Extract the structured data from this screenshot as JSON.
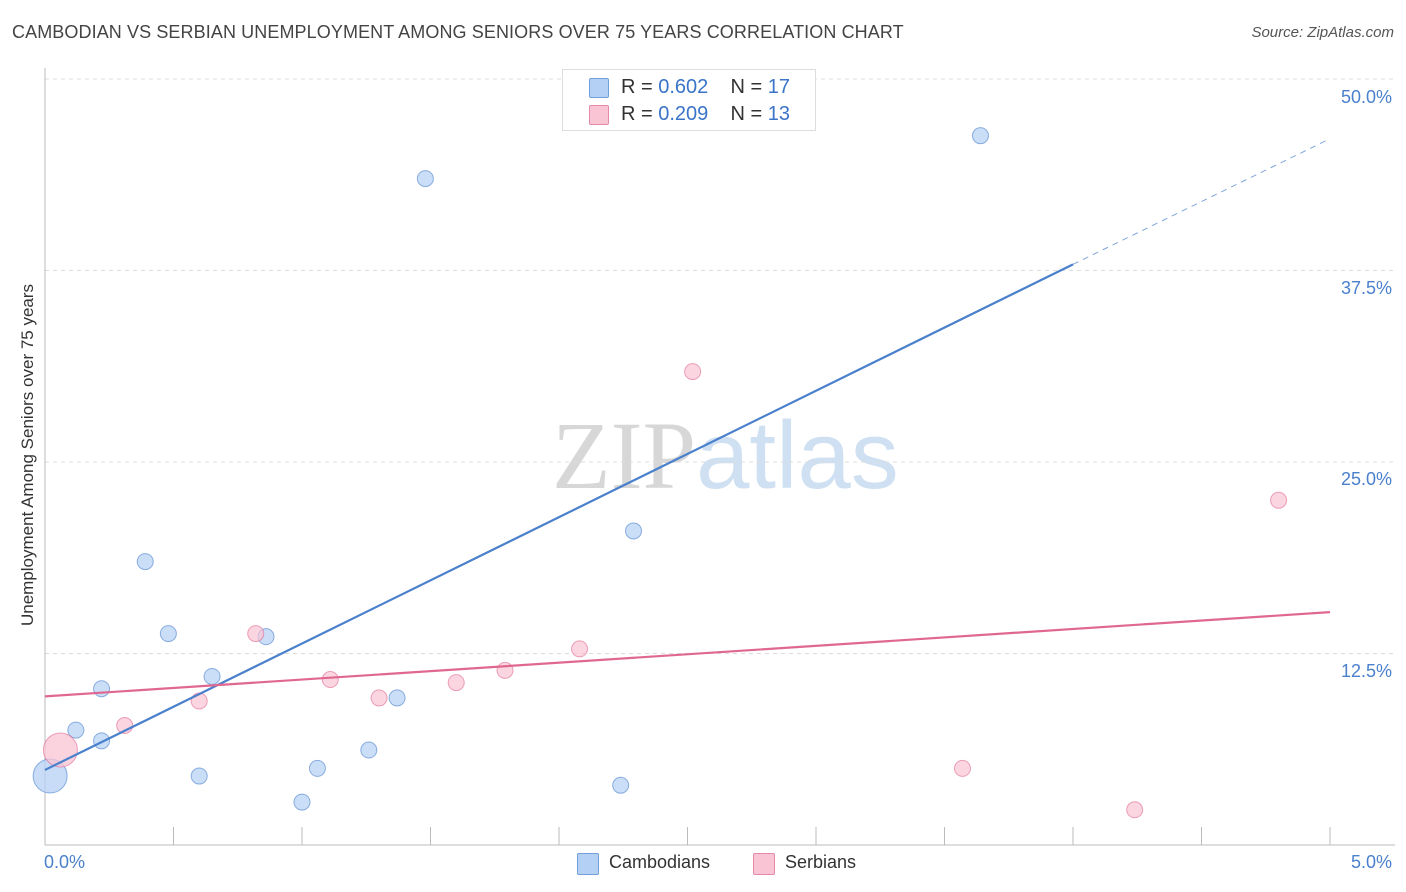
{
  "title": "CAMBODIAN VS SERBIAN UNEMPLOYMENT AMONG SENIORS OVER 75 YEARS CORRELATION CHART",
  "source": "Source: ZipAtlas.com",
  "watermark": {
    "zip": "ZIP",
    "atlas": "atlas"
  },
  "legend": {
    "rows": [
      {
        "r_label": "R = ",
        "r_value": "0.602",
        "n_label": "N = ",
        "n_value": "17",
        "color": "#b5d0f5"
      },
      {
        "r_label": "R = ",
        "r_value": "0.209",
        "n_label": "N = ",
        "n_value": "13",
        "color": "#f9c4d4"
      }
    ]
  },
  "bottom_legend": [
    {
      "label": "Cambodians",
      "color": "#b5d0f5"
    },
    {
      "label": "Serbians",
      "color": "#f9c4d4"
    }
  ],
  "chart_data": {
    "type": "scatter",
    "ylabel": "Unemployment Among Seniors over 75 years",
    "xlim": [
      0,
      5.0
    ],
    "ylim": [
      0,
      50.0
    ],
    "x_tick_labels": [
      "0.0%",
      "5.0%"
    ],
    "y_ticks": [
      12.5,
      25.0,
      37.5,
      50.0
    ],
    "y_tick_labels": [
      "12.5%",
      "25.0%",
      "37.5%",
      "50.0%"
    ],
    "grid": true,
    "series": [
      {
        "name": "Cambodians",
        "color": "#4a80cc",
        "fill": "#b5d0f5",
        "points": [
          {
            "x": 0.02,
            "y": 4.5,
            "big": true
          },
          {
            "x": 0.12,
            "y": 7.5
          },
          {
            "x": 0.22,
            "y": 6.8
          },
          {
            "x": 0.22,
            "y": 10.2
          },
          {
            "x": 0.39,
            "y": 18.5
          },
          {
            "x": 0.48,
            "y": 13.8
          },
          {
            "x": 0.6,
            "y": 4.5
          },
          {
            "x": 0.65,
            "y": 11.0
          },
          {
            "x": 0.86,
            "y": 13.6
          },
          {
            "x": 1.0,
            "y": 2.8
          },
          {
            "x": 1.06,
            "y": 5.0
          },
          {
            "x": 1.26,
            "y": 6.2
          },
          {
            "x": 1.37,
            "y": 9.6
          },
          {
            "x": 1.48,
            "y": 43.5
          },
          {
            "x": 2.24,
            "y": 3.9
          },
          {
            "x": 2.29,
            "y": 20.5
          },
          {
            "x": 3.64,
            "y": 46.3
          }
        ],
        "trend": {
          "x1": 0.0,
          "y1": 4.9,
          "x2": 4.0,
          "y2": 37.9,
          "dash_to_x": 5.0,
          "dash_to_y": 46.1
        }
      },
      {
        "name": "Serbians",
        "color": "#e06890",
        "fill": "#f9c4d4",
        "points": [
          {
            "x": 0.06,
            "y": 6.2,
            "big": true
          },
          {
            "x": 0.31,
            "y": 7.8
          },
          {
            "x": 0.6,
            "y": 9.4
          },
          {
            "x": 0.82,
            "y": 13.8
          },
          {
            "x": 1.11,
            "y": 10.8
          },
          {
            "x": 1.3,
            "y": 9.6
          },
          {
            "x": 1.6,
            "y": 10.6
          },
          {
            "x": 1.79,
            "y": 11.4
          },
          {
            "x": 2.08,
            "y": 12.8
          },
          {
            "x": 2.52,
            "y": 30.9
          },
          {
            "x": 3.57,
            "y": 5.0
          },
          {
            "x": 4.24,
            "y": 2.3
          },
          {
            "x": 4.8,
            "y": 22.5
          }
        ],
        "trend": {
          "x1": 0.0,
          "y1": 9.7,
          "x2": 5.0,
          "y2": 15.2
        }
      }
    ]
  }
}
